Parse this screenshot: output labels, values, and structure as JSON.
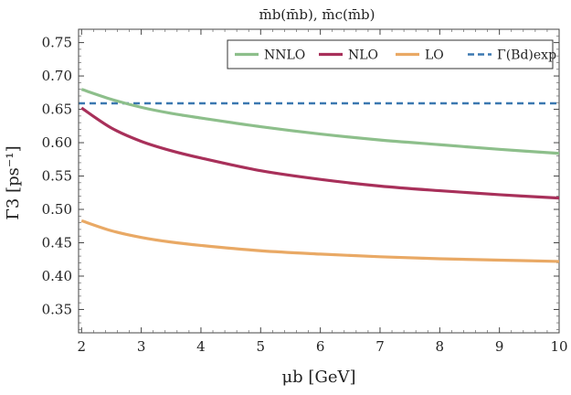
{
  "chart_data": {
    "type": "line",
    "title": "m̄b(m̄b), m̄c(m̄b)",
    "xlabel": "μb [GeV]",
    "ylabel": "Γ3 [ps⁻¹]",
    "xlim": [
      1.95,
      10.0
    ],
    "ylim": [
      0.315,
      0.77
    ],
    "xticks": [
      2,
      3,
      4,
      5,
      6,
      7,
      8,
      9,
      10
    ],
    "yticks": [
      0.35,
      0.4,
      0.45,
      0.5,
      0.55,
      0.6,
      0.65,
      0.7,
      0.75
    ],
    "legend_position": "top-right",
    "series": [
      {
        "name": "NNLO",
        "color": "#8dbf8b",
        "style": "solid",
        "x": [
          2,
          2.5,
          3,
          3.5,
          4,
          5,
          6,
          7,
          8,
          9,
          10
        ],
        "y": [
          0.68,
          0.665,
          0.653,
          0.644,
          0.637,
          0.624,
          0.613,
          0.604,
          0.597,
          0.59,
          0.584
        ]
      },
      {
        "name": "NLO",
        "color": "#a8305a",
        "style": "solid",
        "x": [
          2,
          2.5,
          3,
          3.5,
          4,
          5,
          6,
          7,
          8,
          9,
          10
        ],
        "y": [
          0.652,
          0.622,
          0.602,
          0.588,
          0.577,
          0.558,
          0.545,
          0.535,
          0.528,
          0.522,
          0.517
        ]
      },
      {
        "name": "LO",
        "color": "#e9a965",
        "style": "solid",
        "x": [
          2,
          2.5,
          3,
          3.5,
          4,
          5,
          6,
          7,
          8,
          9,
          10
        ],
        "y": [
          0.483,
          0.468,
          0.458,
          0.451,
          0.446,
          0.438,
          0.433,
          0.429,
          0.426,
          0.424,
          0.422
        ]
      },
      {
        "name": "Γ(Bd)exp",
        "color": "#3b78b0",
        "style": "dashed",
        "x": [
          1.95,
          10
        ],
        "y": [
          0.659,
          0.659
        ]
      }
    ]
  }
}
